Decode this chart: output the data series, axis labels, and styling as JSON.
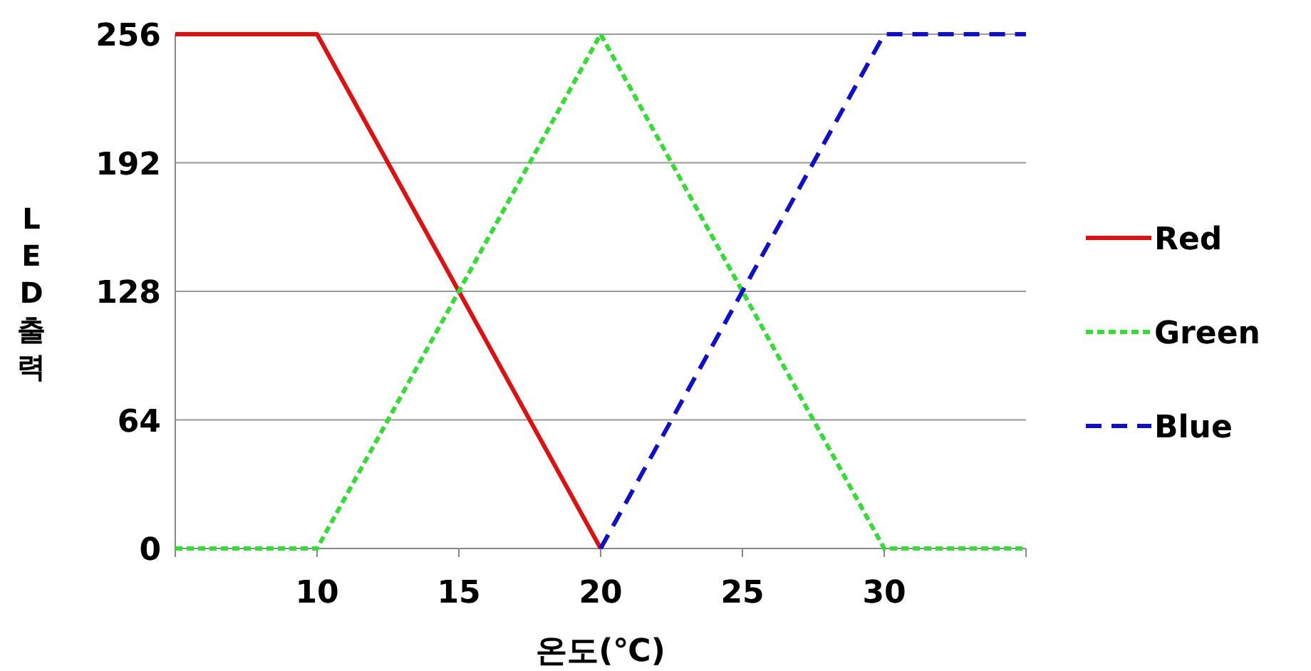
{
  "chart_data": {
    "type": "line",
    "xlabel": "온도(℃)",
    "ylabel": "LED출력",
    "xlim": [
      5,
      35
    ],
    "xticks": [
      {
        "value": 5,
        "label": null
      },
      10,
      15,
      20,
      25,
      30,
      {
        "value": 35,
        "label": null
      }
    ],
    "ylim": [
      0,
      256
    ],
    "yticks": [
      0,
      64,
      128,
      192,
      256
    ],
    "grid": "y",
    "legend": "right",
    "marker": "none",
    "series": [
      {
        "name": "Red",
        "color": "#e01010",
        "line_style": "solid",
        "x": [
          5,
          10,
          20
        ],
        "values": [
          256,
          256,
          0
        ]
      },
      {
        "name": "Green",
        "color": "#33dd33",
        "line_style": "dotted",
        "x": [
          5,
          10,
          20,
          30,
          35
        ],
        "values": [
          0,
          0,
          256,
          0,
          0
        ]
      },
      {
        "name": "Blue",
        "color": "#1010cc",
        "line_style": "dashed",
        "x": [
          20,
          30,
          35
        ],
        "values": [
          0,
          256,
          256
        ]
      }
    ]
  }
}
